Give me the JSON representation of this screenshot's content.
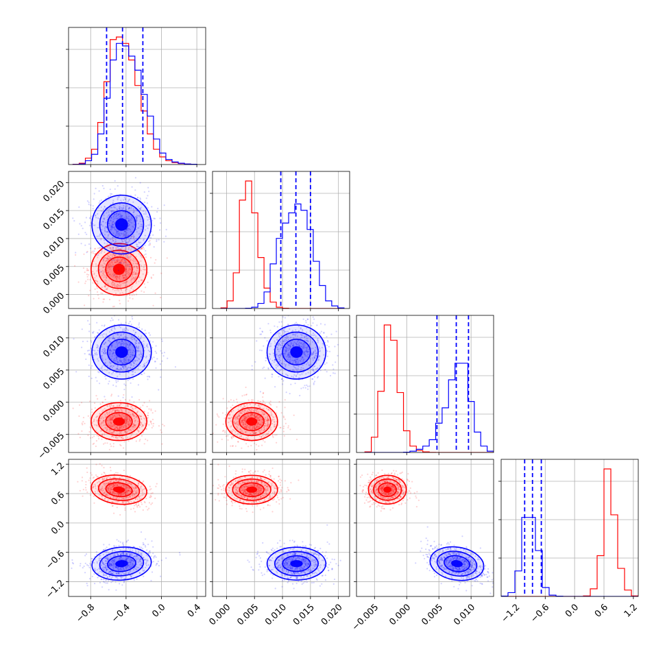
{
  "figure": {
    "background": "#ffffff"
  },
  "colors": {
    "series_a": "#ff0000",
    "series_b": "#0000ff",
    "grid": "#b0b0b0",
    "axes": "#000000"
  },
  "chart_data": {
    "type": "corner",
    "grid": true,
    "series": [
      {
        "color": "#ff0000",
        "mean": [
          -0.48,
          0.0045,
          -0.003,
          0.68
        ],
        "std": [
          0.15,
          0.0022,
          0.0014,
          0.14
        ],
        "corr_with_last": [
          -0.35,
          0.0,
          0.0,
          1.0
        ]
      },
      {
        "color": "#0000ff",
        "mean": [
          -0.45,
          0.0125,
          0.0078,
          -0.83
        ],
        "std": [
          0.16,
          0.0025,
          0.002,
          0.16
        ],
        "corr_with_last": [
          0.3,
          0.0,
          -0.45,
          1.0
        ]
      }
    ],
    "quantile_lines_color": "#0000ff",
    "dimensions": [
      {
        "range": [
          -1.05,
          0.5
        ],
        "ticks": [
          -0.8,
          -0.4,
          0.0,
          0.4
        ],
        "tick_labels": [
          "−0.8",
          "−0.4",
          "0.0",
          "0.4"
        ],
        "quantiles": [
          -0.62,
          -0.44,
          -0.21
        ],
        "hist": {
          "bins": [
            -1.0,
            -0.93,
            -0.86,
            -0.79,
            -0.72,
            -0.65,
            -0.58,
            -0.51,
            -0.44,
            -0.37,
            -0.3,
            -0.23,
            -0.16,
            -0.09,
            -0.02,
            0.05,
            0.12,
            0.19,
            0.26,
            0.33,
            0.4
          ],
          "red": [
            0.002,
            0.01,
            0.05,
            0.12,
            0.33,
            0.65,
            0.98,
            1.0,
            0.95,
            0.82,
            0.62,
            0.42,
            0.24,
            0.12,
            0.06,
            0.03,
            0.015,
            0.008,
            0.004,
            0.002
          ],
          "blue": [
            0.001,
            0.005,
            0.03,
            0.08,
            0.24,
            0.52,
            0.82,
            0.95,
            0.93,
            0.85,
            0.74,
            0.55,
            0.38,
            0.2,
            0.09,
            0.04,
            0.02,
            0.01,
            0.004,
            0.002
          ]
        }
      },
      {
        "range": [
          -0.0025,
          0.022
        ],
        "ticks": [
          0.0,
          0.005,
          0.01,
          0.015,
          0.02
        ],
        "tick_labels": [
          "0.000",
          "0.005",
          "0.010",
          "0.015",
          "0.020"
        ],
        "quantiles": [
          0.0097,
          0.0124,
          0.015
        ],
        "hist": {
          "bins": [
            -0.001,
            0.0001,
            0.0012,
            0.0023,
            0.0034,
            0.0045,
            0.0056,
            0.0067,
            0.0078,
            0.0089,
            0.01,
            0.0111,
            0.0122,
            0.0133,
            0.0144,
            0.0155,
            0.0166,
            0.0177,
            0.0188,
            0.0199,
            0.021
          ],
          "red": [
            0.005,
            0.06,
            0.28,
            0.85,
            1.0,
            0.75,
            0.4,
            0.16,
            0.05,
            0.01,
            0.002,
            0,
            0,
            0,
            0,
            0,
            0,
            0,
            0,
            0
          ],
          "blue": [
            0,
            0,
            0,
            0,
            0.002,
            0.01,
            0.04,
            0.13,
            0.35,
            0.55,
            0.67,
            0.75,
            0.82,
            0.77,
            0.62,
            0.37,
            0.18,
            0.06,
            0.02,
            0.005
          ]
        }
      },
      {
        "range": [
          -0.0078,
          0.0135
        ],
        "ticks": [
          -0.005,
          0.0,
          0.005,
          0.01
        ],
        "tick_labels": [
          "−0.005",
          "0.000",
          "0.005",
          "0.010"
        ],
        "quantiles": [
          0.0047,
          0.0077,
          0.0096
        ],
        "hist": {
          "bins": [
            -0.0065,
            -0.0055,
            -0.0045,
            -0.0035,
            -0.0025,
            -0.0015,
            -0.0005,
            0.0005,
            0.0015,
            0.0025,
            0.0035,
            0.0045,
            0.0055,
            0.0065,
            0.0075,
            0.0085,
            0.0095,
            0.0105,
            0.0115,
            0.0125,
            0.0135
          ],
          "red": [
            0.005,
            0.12,
            0.48,
            1.0,
            0.88,
            0.47,
            0.17,
            0.05,
            0.015,
            0.005,
            0.001,
            0,
            0,
            0,
            0,
            0,
            0,
            0,
            0,
            0
          ],
          "blue": [
            0,
            0,
            0,
            0,
            0,
            0,
            0.002,
            0.01,
            0.025,
            0.05,
            0.1,
            0.23,
            0.35,
            0.57,
            0.7,
            0.7,
            0.4,
            0.16,
            0.05,
            0.01
          ]
        }
      },
      {
        "range": [
          -1.5,
          1.3
        ],
        "ticks": [
          -1.2,
          -0.6,
          0.0,
          0.6,
          1.2
        ],
        "tick_labels": [
          "−1.2",
          "−0.6",
          "0.0",
          "0.6",
          "1.2"
        ],
        "quantiles": [
          -1.02,
          -0.86,
          -0.68
        ],
        "hist": {
          "bins": [
            -1.5,
            -1.36,
            -1.22,
            -1.08,
            -0.94,
            -0.8,
            -0.66,
            -0.52,
            -0.38,
            -0.24,
            -0.1,
            0.04,
            0.18,
            0.32,
            0.46,
            0.6,
            0.74,
            0.88,
            1.02,
            1.16,
            1.3
          ],
          "red": [
            0,
            0,
            0,
            0,
            0,
            0,
            0,
            0,
            0,
            0,
            0,
            0,
            0.004,
            0.06,
            0.32,
            1.0,
            0.64,
            0.22,
            0.05,
            0.004
          ],
          "blue": [
            0.003,
            0.03,
            0.2,
            0.62,
            0.62,
            0.36,
            0.07,
            0.01,
            0.002,
            0,
            0,
            0,
            0,
            0,
            0,
            0,
            0,
            0,
            0,
            0
          ]
        }
      }
    ]
  }
}
